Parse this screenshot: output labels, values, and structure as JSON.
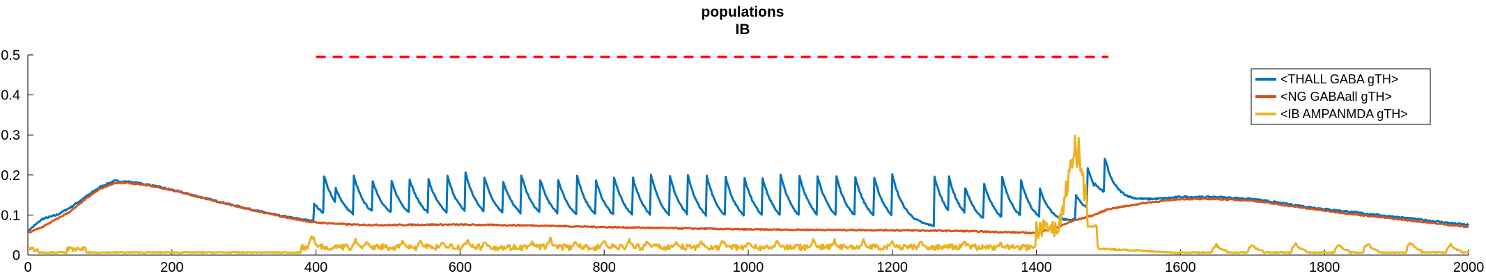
{
  "chart_data": {
    "type": "line",
    "title": "populations",
    "subtitle": "IB",
    "xlabel": "",
    "ylabel": "",
    "xlim": [
      0,
      2000
    ],
    "ylim": [
      0,
      0.5
    ],
    "xticks": [
      "0",
      "200",
      "400",
      "600",
      "800",
      "1000",
      "1200",
      "1400",
      "1600",
      "1800",
      "2000"
    ],
    "yticks": [
      "0",
      "0.1",
      "0.2",
      "0.3",
      "0.4",
      "0.5"
    ],
    "grid": false,
    "legend_position": "top-right",
    "stimulus_marker": {
      "y": 0.495,
      "x_start": 400,
      "x_end": 1500,
      "color": "#ff0000",
      "style": "dashed"
    },
    "series": [
      {
        "name": "<THALL GABA gTH>",
        "color": "#0072bd",
        "kind": "spiky",
        "baseline_x": [
          0,
          20,
          40,
          60,
          80,
          100,
          120,
          140,
          170,
          200,
          250,
          300,
          350,
          395,
          450,
          500,
          550,
          600,
          700,
          800,
          900,
          1000,
          1100,
          1200,
          1270,
          1300,
          1350,
          1400,
          1430,
          1450,
          1480,
          1500,
          1550,
          1600,
          1650,
          1700,
          1750,
          1800,
          1850,
          1900,
          1950,
          2000
        ],
        "baseline_y": [
          0.06,
          0.09,
          0.1,
          0.12,
          0.145,
          0.17,
          0.185,
          0.183,
          0.175,
          0.163,
          0.14,
          0.118,
          0.098,
          0.085,
          0.08,
          0.08,
          0.08,
          0.08,
          0.077,
          0.072,
          0.068,
          0.068,
          0.068,
          0.068,
          0.068,
          0.068,
          0.066,
          0.066,
          0.07,
          0.08,
          0.095,
          0.12,
          0.135,
          0.145,
          0.145,
          0.14,
          0.127,
          0.115,
          0.105,
          0.095,
          0.085,
          0.075
        ],
        "spike_times": [
          397,
          411,
          427,
          452,
          478,
          504,
          530,
          556,
          582,
          607,
          633,
          659,
          685,
          711,
          736,
          762,
          788,
          813,
          839,
          865,
          891,
          916,
          942,
          968,
          994,
          1019,
          1045,
          1071,
          1096,
          1122,
          1148,
          1174,
          1200,
          1258,
          1278,
          1301,
          1327,
          1352,
          1378,
          1404,
          1455,
          1471,
          1495
        ],
        "spike_peaks": [
          0.13,
          0.2,
          0.17,
          0.2,
          0.19,
          0.19,
          0.19,
          0.19,
          0.2,
          0.21,
          0.2,
          0.19,
          0.2,
          0.19,
          0.19,
          0.2,
          0.19,
          0.2,
          0.2,
          0.2,
          0.2,
          0.2,
          0.2,
          0.2,
          0.2,
          0.2,
          0.2,
          0.2,
          0.2,
          0.2,
          0.2,
          0.2,
          0.2,
          0.2,
          0.2,
          0.17,
          0.18,
          0.2,
          0.19,
          0.17,
          0.15,
          0.22,
          0.23
        ],
        "decay_ms": 18,
        "noise": 0.004
      },
      {
        "name": "<NG GABAall gTH>",
        "color": "#d95319",
        "kind": "smooth",
        "x": [
          0,
          20,
          40,
          60,
          80,
          100,
          120,
          140,
          170,
          200,
          250,
          300,
          350,
          395,
          450,
          500,
          550,
          600,
          700,
          800,
          900,
          1000,
          1100,
          1200,
          1300,
          1400,
          1430,
          1450,
          1480,
          1500,
          1550,
          1600,
          1650,
          1700,
          1750,
          1800,
          1850,
          1900,
          1950,
          2000
        ],
        "y": [
          0.055,
          0.07,
          0.09,
          0.11,
          0.14,
          0.165,
          0.18,
          0.18,
          0.173,
          0.162,
          0.14,
          0.117,
          0.097,
          0.082,
          0.076,
          0.075,
          0.076,
          0.076,
          0.074,
          0.07,
          0.067,
          0.064,
          0.063,
          0.062,
          0.06,
          0.055,
          0.07,
          0.085,
          0.1,
          0.115,
          0.13,
          0.14,
          0.14,
          0.136,
          0.123,
          0.111,
          0.1,
          0.09,
          0.08,
          0.07
        ],
        "noise": 0.003
      },
      {
        "name": "<IB AMPANMDA gTH>",
        "color": "#edb120",
        "kind": "bursty",
        "baseline": 0.005,
        "active_range": [
          380,
          1485
        ],
        "burst_times": [
          395,
          455,
          470,
          520,
          545,
          575,
          610,
          635,
          700,
          725,
          760,
          800,
          835,
          860,
          900,
          935,
          965,
          1000,
          1040,
          1090,
          1120,
          1160,
          1200,
          1240,
          1300,
          1350,
          1650,
          1700,
          1760,
          1820,
          1860,
          1920,
          1975
        ],
        "burst_peaks": [
          0.05,
          0.035,
          0.03,
          0.03,
          0.035,
          0.03,
          0.04,
          0.03,
          0.03,
          0.04,
          0.03,
          0.035,
          0.035,
          0.03,
          0.03,
          0.03,
          0.035,
          0.03,
          0.03,
          0.035,
          0.03,
          0.03,
          0.03,
          0.03,
          0.03,
          0.025,
          0.02,
          0.02,
          0.025,
          0.02,
          0.025,
          0.03,
          0.02
        ],
        "big_burst": {
          "x_start": 1400,
          "x_end": 1470,
          "peak_x": 1455,
          "peak": 0.31
        },
        "noise": 0.004
      }
    ]
  }
}
